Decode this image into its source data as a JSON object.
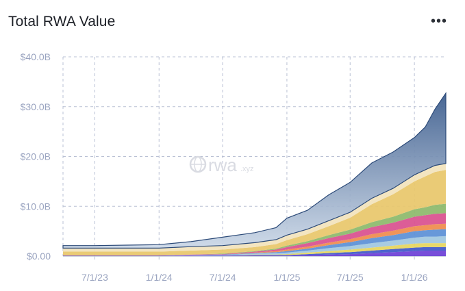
{
  "header": {
    "title": "Total RWA Value",
    "more_icon": "more-horizontal-icon",
    "more_label": "•••"
  },
  "watermark": {
    "brand": "rwa",
    "suffix": ".xyz"
  },
  "chart_data": {
    "type": "area",
    "stacked": true,
    "title": "Total RWA Value",
    "xlabel": "",
    "ylabel": "",
    "ylim": [
      0,
      40
    ],
    "y_unit": "B USD",
    "grid": true,
    "legend": "none",
    "x_ticks": [
      "7/1/23",
      "1/1/24",
      "7/1/24",
      "1/1/25",
      "7/1/25",
      "1/1/26"
    ],
    "y_ticks": [
      "$0.00",
      "$10.0B",
      "$20.0B",
      "$30.0B",
      "$40.0B"
    ],
    "x": [
      "2023-04-01",
      "2023-07-01",
      "2023-10-01",
      "2024-01-01",
      "2024-04-01",
      "2024-07-01",
      "2024-10-01",
      "2024-12-01",
      "2025-01-01",
      "2025-03-01",
      "2025-05-01",
      "2025-07-01",
      "2025-09-01",
      "2025-11-01",
      "2026-01-01",
      "2026-02-01",
      "2026-03-01",
      "2026-04-01"
    ],
    "series": [
      {
        "color": "#6b3fd6",
        "values": [
          0.1,
          0.1,
          0.1,
          0.1,
          0.1,
          0.1,
          0.1,
          0.1,
          0.1,
          0.2,
          0.3,
          0.4,
          0.6,
          0.8,
          1.0,
          1.1,
          1.1,
          1.1
        ]
      },
      {
        "color": "#3e57c9",
        "values": [
          0.0,
          0.0,
          0.0,
          0.0,
          0.0,
          0.0,
          0.1,
          0.1,
          0.1,
          0.2,
          0.3,
          0.4,
          0.5,
          0.6,
          0.7,
          0.7,
          0.7,
          0.7
        ]
      },
      {
        "color": "#e6d55c",
        "values": [
          0.0,
          0.0,
          0.0,
          0.0,
          0.0,
          0.0,
          0.1,
          0.1,
          0.2,
          0.3,
          0.4,
          0.5,
          0.6,
          0.7,
          0.8,
          0.8,
          0.8,
          0.8
        ]
      },
      {
        "color": "#9fc7df",
        "values": [
          0.0,
          0.0,
          0.0,
          0.0,
          0.1,
          0.1,
          0.2,
          0.3,
          0.3,
          0.4,
          0.6,
          0.7,
          0.9,
          1.0,
          1.2,
          1.3,
          1.3,
          1.4
        ]
      },
      {
        "color": "#5b8fd6",
        "values": [
          0.0,
          0.0,
          0.0,
          0.0,
          0.0,
          0.1,
          0.1,
          0.2,
          0.3,
          0.4,
          0.6,
          0.8,
          1.0,
          1.1,
          1.3,
          1.3,
          1.4,
          1.4
        ]
      },
      {
        "color": "#ef8b4c",
        "values": [
          0.0,
          0.0,
          0.0,
          0.0,
          0.0,
          0.0,
          0.1,
          0.2,
          0.3,
          0.4,
          0.5,
          0.6,
          0.8,
          0.9,
          1.0,
          1.0,
          1.1,
          1.1
        ]
      },
      {
        "color": "#d94f8e",
        "values": [
          0.0,
          0.0,
          0.0,
          0.0,
          0.1,
          0.1,
          0.2,
          0.3,
          0.5,
          0.7,
          0.9,
          1.1,
          1.4,
          1.6,
          1.9,
          2.0,
          2.1,
          2.1
        ]
      },
      {
        "color": "#8cb96a",
        "values": [
          0.0,
          0.0,
          0.0,
          0.0,
          0.0,
          0.1,
          0.1,
          0.2,
          0.3,
          0.4,
          0.6,
          0.8,
          1.0,
          1.2,
          1.5,
          1.6,
          1.8,
          1.9
        ]
      },
      {
        "color": "#e8c76a",
        "values": [
          0.8,
          0.8,
          0.8,
          0.8,
          0.8,
          0.8,
          0.8,
          0.9,
          1.1,
          1.4,
          1.8,
          2.4,
          3.6,
          4.5,
          5.6,
          6.2,
          6.6,
          6.8
        ]
      },
      {
        "color": "#f2e3bc",
        "values": [
          0.7,
          0.7,
          0.7,
          0.7,
          0.8,
          0.8,
          0.9,
          0.9,
          1.0,
          1.0,
          1.1,
          1.1,
          1.2,
          1.2,
          1.3,
          1.3,
          1.3,
          1.3
        ]
      },
      {
        "color": "#4a6a98",
        "values": [
          0.5,
          0.5,
          0.6,
          0.7,
          1.0,
          1.7,
          2.0,
          2.4,
          3.4,
          3.8,
          5.2,
          6.0,
          7.1,
          7.3,
          7.5,
          8.6,
          11.3,
          14.1
        ]
      }
    ]
  }
}
